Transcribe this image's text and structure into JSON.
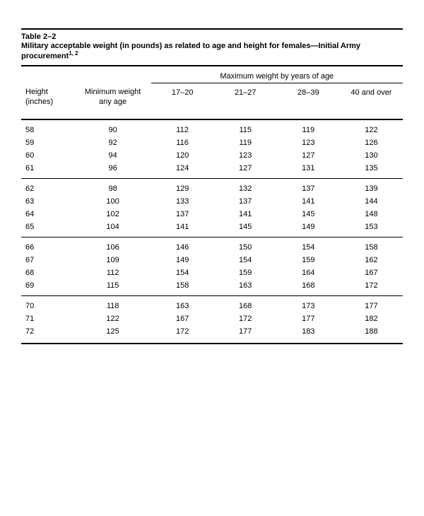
{
  "table": {
    "label": "Table 2–2",
    "title_prefix": "Military acceptable weight (in pounds) as related to age and height for females—Initial Army procurement",
    "title_sup": "1, 2",
    "span_header": "Maximum weight by years of age",
    "columns": {
      "height": "Height (inches)",
      "min_weight": "Minimum weight any age",
      "age1": "17–20",
      "age2": "21–27",
      "age3": "28–39",
      "age4": "40 and over"
    },
    "groups": [
      {
        "rows": [
          {
            "h": "58",
            "m": "90",
            "a1": "112",
            "a2": "115",
            "a3": "119",
            "a4": "122"
          },
          {
            "h": "59",
            "m": "92",
            "a1": "116",
            "a2": "119",
            "a3": "123",
            "a4": "126"
          },
          {
            "h": "60",
            "m": "94",
            "a1": "120",
            "a2": "123",
            "a3": "127",
            "a4": "130"
          },
          {
            "h": "61",
            "m": "96",
            "a1": "124",
            "a2": "127",
            "a3": "131",
            "a4": "135"
          }
        ]
      },
      {
        "rows": [
          {
            "h": "62",
            "m": "98",
            "a1": "129",
            "a2": "132",
            "a3": "137",
            "a4": "139"
          },
          {
            "h": "63",
            "m": "100",
            "a1": "133",
            "a2": "137",
            "a3": "141",
            "a4": "144"
          },
          {
            "h": "64",
            "m": "102",
            "a1": "137",
            "a2": "141",
            "a3": "145",
            "a4": "148"
          },
          {
            "h": "65",
            "m": "104",
            "a1": "141",
            "a2": "145",
            "a3": "149",
            "a4": "153"
          }
        ]
      },
      {
        "rows": [
          {
            "h": "66",
            "m": "106",
            "a1": "146",
            "a2": "150",
            "a3": "154",
            "a4": "158"
          },
          {
            "h": "67",
            "m": "109",
            "a1": "149",
            "a2": "154",
            "a3": "159",
            "a4": "162"
          },
          {
            "h": "68",
            "m": "112",
            "a1": "154",
            "a2": "159",
            "a3": "164",
            "a4": "167"
          },
          {
            "h": "69",
            "m": "115",
            "a1": "158",
            "a2": "163",
            "a3": "168",
            "a4": "172"
          }
        ]
      },
      {
        "rows": [
          {
            "h": "70",
            "m": "118",
            "a1": "163",
            "a2": "168",
            "a3": "173",
            "a4": "177"
          },
          {
            "h": "71",
            "m": "122",
            "a1": "167",
            "a2": "172",
            "a3": "177",
            "a4": "182"
          },
          {
            "h": "72",
            "m": "125",
            "a1": "172",
            "a2": "177",
            "a3": "183",
            "a4": "188"
          }
        ]
      }
    ]
  }
}
